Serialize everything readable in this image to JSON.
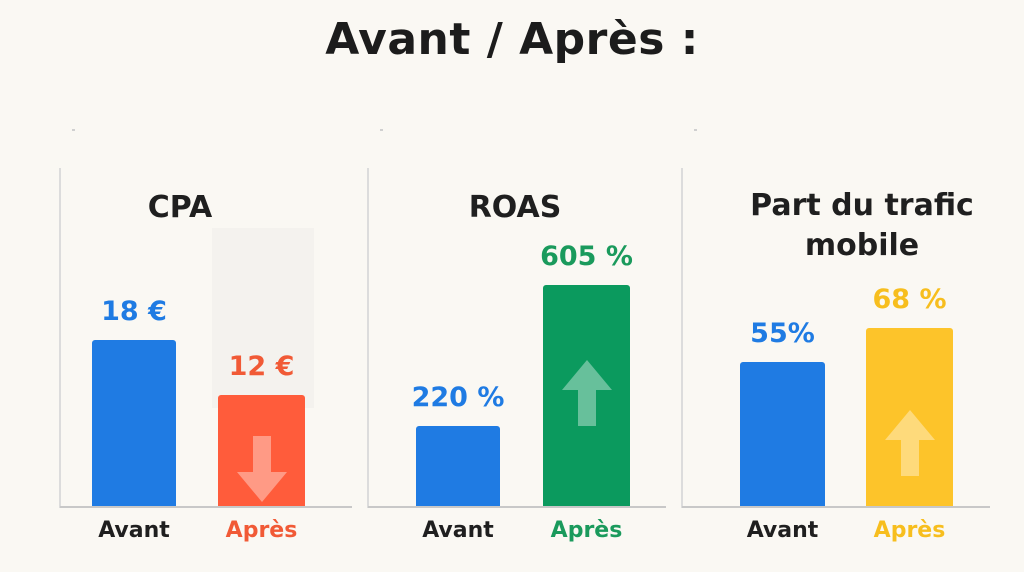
{
  "title": "Avant  / Après :",
  "colors": {
    "blue": "#1f7be3",
    "red": "#ff5c3b",
    "green": "#0b9a5e",
    "yellow": "#fdc42a",
    "red_text": "#f15a36",
    "green_text": "#1a9a5c",
    "yellow_text": "#f7be1e",
    "dark": "#1f1f1f"
  },
  "chart_data": [
    {
      "type": "bar",
      "title": "CPA",
      "categories": [
        "Avant",
        "Après"
      ],
      "values": [
        18,
        12
      ],
      "value_labels": [
        "18 €",
        "12 €"
      ],
      "unit": "€",
      "trend": "down",
      "arrow_icon": "arrow-down-icon"
    },
    {
      "type": "bar",
      "title": "ROAS",
      "categories": [
        "Avant",
        "Après"
      ],
      "values": [
        220,
        605
      ],
      "value_labels": [
        "220 %",
        "605 %"
      ],
      "unit": "%",
      "trend": "up",
      "arrow_icon": "arrow-up-icon"
    },
    {
      "type": "bar",
      "title": "Part du trafic mobile",
      "categories": [
        "Avant",
        "Après"
      ],
      "values": [
        55,
        68
      ],
      "value_labels": [
        "55%",
        "68 %"
      ],
      "unit": "%",
      "trend": "up",
      "arrow_icon": "arrow-up-icon"
    }
  ]
}
